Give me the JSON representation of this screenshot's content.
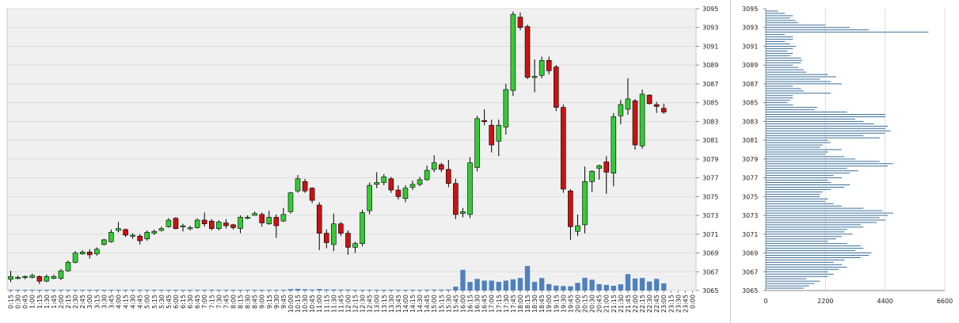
{
  "chart_data": [
    {
      "type": "candlestick",
      "title": "",
      "xlabel": "",
      "ylabel": "",
      "ylim": [
        3065,
        3095
      ],
      "grid": true,
      "y_ticks": [
        "3065",
        "3067",
        "3069",
        "3071",
        "3073",
        "3075",
        "3077",
        "3079",
        "3081",
        "3083",
        "3085",
        "3087",
        "3089",
        "3091",
        "3093",
        "3095"
      ],
      "x_ticks": [
        "0:15",
        "0:30",
        "0:45",
        "1:00",
        "1:15",
        "1:30",
        "1:45",
        "2:00",
        "2:15",
        "2:30",
        "2:45",
        "3:00",
        "3:15",
        "3:30",
        "3:45",
        "4:00",
        "4:15",
        "4:30",
        "4:45",
        "5:00",
        "5:15",
        "5:30",
        "5:45",
        "6:00",
        "6:15",
        "6:30",
        "6:45",
        "7:00",
        "7:15",
        "7:30",
        "7:45",
        "8:00",
        "8:15",
        "8:30",
        "8:45",
        "9:00",
        "9:15",
        "9:30",
        "9:45",
        "10:00",
        "10:15",
        "10:30",
        "10:45",
        "11:00",
        "11:15",
        "11:30",
        "11:45",
        "12:00",
        "12:15",
        "12:30",
        "12:45",
        "13:00",
        "13:15",
        "13:30",
        "13:45",
        "14:00",
        "14:15",
        "14:30",
        "14:45",
        "15:00",
        "15:15",
        "15:30",
        "15:45",
        "16:00",
        "16:15",
        "16:30",
        "16:45",
        "17:00",
        "17:15",
        "17:30",
        "17:45",
        "18:00",
        "18:15",
        "18:30",
        "18:45",
        "19:00",
        "19:15",
        "19:30",
        "19:45",
        "20:00",
        "20:15",
        "20:30",
        "20:45",
        "21:00",
        "21:15",
        "21:30",
        "21:45",
        "22:00",
        "22:15",
        "22:30",
        "22:45",
        "23:00",
        "23:15",
        "23:30",
        "23:45",
        "0:00"
      ],
      "colors": {
        "up": "#33cc33",
        "down": "#cc1111",
        "volume": "#4f81bd",
        "grid": "#dcdcdc",
        "plot_bg": "#f0f0f0"
      },
      "candles": [
        {
          "t": "0:15",
          "o": 3066.2,
          "h": 3067.1,
          "l": 3065.9,
          "c": 3066.5
        },
        {
          "t": "0:30",
          "o": 3066.4,
          "h": 3066.6,
          "l": 3066.2,
          "c": 3066.4
        },
        {
          "t": "0:45",
          "o": 3066.4,
          "h": 3066.6,
          "l": 3066.2,
          "c": 3066.5
        },
        {
          "t": "1:00",
          "o": 3066.4,
          "h": 3066.8,
          "l": 3066.3,
          "c": 3066.6
        },
        {
          "t": "1:15",
          "o": 3066.5,
          "h": 3066.6,
          "l": 3065.7,
          "c": 3066.0
        },
        {
          "t": "1:30",
          "o": 3066.0,
          "h": 3066.7,
          "l": 3065.9,
          "c": 3066.5
        },
        {
          "t": "1:45",
          "o": 3066.3,
          "h": 3066.7,
          "l": 3066.2,
          "c": 3066.5
        },
        {
          "t": "2:00",
          "o": 3066.3,
          "h": 3067.3,
          "l": 3066.1,
          "c": 3067.1
        },
        {
          "t": "2:15",
          "o": 3067.1,
          "h": 3068.2,
          "l": 3067.0,
          "c": 3068.0
        },
        {
          "t": "2:30",
          "o": 3068.0,
          "h": 3069.2,
          "l": 3067.9,
          "c": 3069.0
        },
        {
          "t": "2:45",
          "o": 3068.9,
          "h": 3069.3,
          "l": 3068.8,
          "c": 3069.1
        },
        {
          "t": "3:00",
          "o": 3069.1,
          "h": 3069.4,
          "l": 3068.4,
          "c": 3068.8
        },
        {
          "t": "3:15",
          "o": 3068.9,
          "h": 3069.6,
          "l": 3068.7,
          "c": 3069.4
        },
        {
          "t": "3:30",
          "o": 3069.9,
          "h": 3070.5,
          "l": 3069.8,
          "c": 3070.4
        },
        {
          "t": "3:45",
          "o": 3070.2,
          "h": 3071.5,
          "l": 3070.1,
          "c": 3071.2
        },
        {
          "t": "4:00",
          "o": 3071.4,
          "h": 3072.3,
          "l": 3071.2,
          "c": 3071.6
        },
        {
          "t": "4:15",
          "o": 3071.5,
          "h": 3071.6,
          "l": 3070.7,
          "c": 3070.9
        },
        {
          "t": "4:30",
          "o": 3070.8,
          "h": 3071.1,
          "l": 3070.5,
          "c": 3070.9
        },
        {
          "t": "4:45",
          "o": 3070.8,
          "h": 3071.0,
          "l": 3069.9,
          "c": 3070.3
        },
        {
          "t": "5:00",
          "o": 3070.5,
          "h": 3071.4,
          "l": 3070.3,
          "c": 3071.2
        },
        {
          "t": "5:15",
          "o": 3071.1,
          "h": 3071.5,
          "l": 3070.9,
          "c": 3071.3
        },
        {
          "t": "5:30",
          "o": 3071.4,
          "h": 3071.8,
          "l": 3071.3,
          "c": 3071.6
        },
        {
          "t": "5:45",
          "o": 3071.8,
          "h": 3072.7,
          "l": 3071.7,
          "c": 3072.5
        },
        {
          "t": "6:00",
          "o": 3072.7,
          "h": 3072.8,
          "l": 3071.5,
          "c": 3071.6
        },
        {
          "t": "6:15",
          "o": 3071.8,
          "h": 3072.1,
          "l": 3071.3,
          "c": 3071.9
        },
        {
          "t": "6:30",
          "o": 3071.7,
          "h": 3071.9,
          "l": 3071.4,
          "c": 3071.7
        },
        {
          "t": "6:45",
          "o": 3071.7,
          "h": 3072.7,
          "l": 3071.6,
          "c": 3072.5
        },
        {
          "t": "7:00",
          "o": 3072.5,
          "h": 3073.3,
          "l": 3071.8,
          "c": 3072.1
        },
        {
          "t": "7:15",
          "o": 3072.4,
          "h": 3072.6,
          "l": 3071.4,
          "c": 3071.6
        },
        {
          "t": "7:30",
          "o": 3071.6,
          "h": 3072.5,
          "l": 3071.4,
          "c": 3072.3
        },
        {
          "t": "7:45",
          "o": 3072.2,
          "h": 3072.6,
          "l": 3071.6,
          "c": 3071.9
        },
        {
          "t": "8:00",
          "o": 3072.0,
          "h": 3072.1,
          "l": 3071.5,
          "c": 3071.7
        },
        {
          "t": "8:15",
          "o": 3071.6,
          "h": 3073.0,
          "l": 3071.1,
          "c": 3072.8
        },
        {
          "t": "8:30",
          "o": 3072.8,
          "h": 3073.0,
          "l": 3072.6,
          "c": 3072.8
        },
        {
          "t": "8:45",
          "o": 3073.0,
          "h": 3073.4,
          "l": 3073.0,
          "c": 3073.2
        },
        {
          "t": "9:00",
          "o": 3073.1,
          "h": 3073.3,
          "l": 3071.8,
          "c": 3072.2
        },
        {
          "t": "9:15",
          "o": 3072.1,
          "h": 3073.5,
          "l": 3072.0,
          "c": 3072.8
        },
        {
          "t": "9:30",
          "o": 3072.8,
          "h": 3073.1,
          "l": 3070.6,
          "c": 3071.9
        },
        {
          "t": "9:45",
          "o": 3072.4,
          "h": 3073.8,
          "l": 3072.3,
          "c": 3073.1
        },
        {
          "t": "10:00",
          "o": 3073.4,
          "h": 3075.5,
          "l": 3073.2,
          "c": 3075.4
        },
        {
          "t": "10:15",
          "o": 3075.6,
          "h": 3077.3,
          "l": 3075.4,
          "c": 3076.9
        },
        {
          "t": "10:30",
          "o": 3076.6,
          "h": 3076.9,
          "l": 3075.4,
          "c": 3075.6
        },
        {
          "t": "10:45",
          "o": 3075.9,
          "h": 3076.0,
          "l": 3074.3,
          "c": 3074.6
        },
        {
          "t": "11:00",
          "o": 3074.1,
          "h": 3074.4,
          "l": 3069.3,
          "c": 3071.1
        },
        {
          "t": "11:15",
          "o": 3071.1,
          "h": 3071.5,
          "l": 3069.5,
          "c": 3070.1
        },
        {
          "t": "11:30",
          "o": 3069.9,
          "h": 3073.2,
          "l": 3069.2,
          "c": 3072.1
        },
        {
          "t": "11:45",
          "o": 3072.1,
          "h": 3072.3,
          "l": 3070.8,
          "c": 3071.1
        },
        {
          "t": "12:00",
          "o": 3071.1,
          "h": 3071.4,
          "l": 3068.8,
          "c": 3069.6
        },
        {
          "t": "12:15",
          "o": 3069.6,
          "h": 3070.2,
          "l": 3069.0,
          "c": 3070.0
        },
        {
          "t": "12:30",
          "o": 3070.0,
          "h": 3073.6,
          "l": 3069.7,
          "c": 3073.3
        },
        {
          "t": "12:45",
          "o": 3073.5,
          "h": 3076.5,
          "l": 3073.1,
          "c": 3076.2
        },
        {
          "t": "13:00",
          "o": 3076.3,
          "h": 3077.6,
          "l": 3075.9,
          "c": 3076.5
        },
        {
          "t": "13:15",
          "o": 3076.5,
          "h": 3077.4,
          "l": 3076.2,
          "c": 3077.1
        },
        {
          "t": "13:30",
          "o": 3076.9,
          "h": 3077.1,
          "l": 3075.4,
          "c": 3075.7
        },
        {
          "t": "13:45",
          "o": 3075.7,
          "h": 3076.2,
          "l": 3074.7,
          "c": 3075.0
        },
        {
          "t": "14:00",
          "o": 3074.8,
          "h": 3076.2,
          "l": 3074.4,
          "c": 3075.9
        },
        {
          "t": "14:15",
          "o": 3076.0,
          "h": 3076.7,
          "l": 3075.7,
          "c": 3076.3
        },
        {
          "t": "14:30",
          "o": 3076.3,
          "h": 3077.1,
          "l": 3076.1,
          "c": 3076.8
        },
        {
          "t": "14:45",
          "o": 3076.8,
          "h": 3078.3,
          "l": 3076.7,
          "c": 3077.8
        },
        {
          "t": "15:00",
          "o": 3077.9,
          "h": 3079.4,
          "l": 3077.6,
          "c": 3078.6
        },
        {
          "t": "15:15",
          "o": 3078.4,
          "h": 3078.6,
          "l": 3077.6,
          "c": 3077.9
        },
        {
          "t": "15:30",
          "o": 3077.9,
          "h": 3078.9,
          "l": 3076.0,
          "c": 3076.4
        },
        {
          "t": "15:45",
          "o": 3076.4,
          "h": 3076.9,
          "l": 3072.6,
          "c": 3073.1
        },
        {
          "t": "16:00",
          "o": 3073.2,
          "h": 3073.8,
          "l": 3072.8,
          "c": 3073.4
        },
        {
          "t": "16:15",
          "o": 3073.1,
          "h": 3079.2,
          "l": 3072.7,
          "c": 3078.6
        },
        {
          "t": "16:30",
          "o": 3078.1,
          "h": 3083.6,
          "l": 3077.7,
          "c": 3083.3
        },
        {
          "t": "16:45",
          "o": 3083.1,
          "h": 3084.3,
          "l": 3082.6,
          "c": 3083.0
        },
        {
          "t": "17:00",
          "o": 3082.6,
          "h": 3083.2,
          "l": 3079.7,
          "c": 3080.5
        },
        {
          "t": "17:15",
          "o": 3080.9,
          "h": 3083.2,
          "l": 3079.3,
          "c": 3082.6
        },
        {
          "t": "17:30",
          "o": 3082.4,
          "h": 3087.0,
          "l": 3081.6,
          "c": 3086.4
        },
        {
          "t": "17:45",
          "o": 3086.3,
          "h": 3094.7,
          "l": 3085.7,
          "c": 3094.4
        },
        {
          "t": "18:00",
          "o": 3094.1,
          "h": 3094.6,
          "l": 3092.7,
          "c": 3093.0
        },
        {
          "t": "18:15",
          "o": 3093.1,
          "h": 3093.3,
          "l": 3087.5,
          "c": 3087.7
        },
        {
          "t": "18:30",
          "o": 3087.7,
          "h": 3089.6,
          "l": 3086.1,
          "c": 3087.8
        },
        {
          "t": "18:45",
          "o": 3087.9,
          "h": 3089.9,
          "l": 3087.6,
          "c": 3089.5
        },
        {
          "t": "19:00",
          "o": 3089.5,
          "h": 3089.9,
          "l": 3088.0,
          "c": 3088.4
        },
        {
          "t": "19:15",
          "o": 3088.8,
          "h": 3089.0,
          "l": 3084.1,
          "c": 3084.5
        },
        {
          "t": "19:30",
          "o": 3084.5,
          "h": 3084.8,
          "l": 3075.4,
          "c": 3075.8
        },
        {
          "t": "19:45",
          "o": 3075.6,
          "h": 3075.8,
          "l": 3070.4,
          "c": 3071.8
        },
        {
          "t": "20:00",
          "o": 3071.3,
          "h": 3073.1,
          "l": 3070.8,
          "c": 3071.9
        },
        {
          "t": "20:15",
          "o": 3072.0,
          "h": 3078.2,
          "l": 3071.1,
          "c": 3076.6
        },
        {
          "t": "20:30",
          "o": 3076.6,
          "h": 3077.8,
          "l": 3075.5,
          "c": 3077.7
        },
        {
          "t": "20:45",
          "o": 3078.0,
          "h": 3078.4,
          "l": 3076.8,
          "c": 3078.3
        },
        {
          "t": "21:00",
          "o": 3078.7,
          "h": 3079.3,
          "l": 3075.3,
          "c": 3077.6
        },
        {
          "t": "21:15",
          "o": 3077.5,
          "h": 3083.9,
          "l": 3076.1,
          "c": 3083.5
        },
        {
          "t": "21:30",
          "o": 3083.6,
          "h": 3085.3,
          "l": 3082.7,
          "c": 3084.8
        },
        {
          "t": "21:45",
          "o": 3084.3,
          "h": 3087.6,
          "l": 3083.7,
          "c": 3085.4
        },
        {
          "t": "22:00",
          "o": 3085.2,
          "h": 3085.4,
          "l": 3080.0,
          "c": 3080.5
        },
        {
          "t": "22:15",
          "o": 3080.4,
          "h": 3086.4,
          "l": 3080.1,
          "c": 3085.9
        },
        {
          "t": "22:30",
          "o": 3085.8,
          "h": 3085.9,
          "l": 3084.8,
          "c": 3084.9
        },
        {
          "t": "22:45",
          "o": 3084.8,
          "h": 3085.1,
          "l": 3083.9,
          "c": 3084.6
        },
        {
          "t": "23:00",
          "o": 3084.4,
          "h": 3084.9,
          "l": 3083.8,
          "c": 3084.0
        }
      ],
      "volume": [
        50,
        30,
        20,
        20,
        30,
        20,
        20,
        60,
        40,
        40,
        30,
        40,
        40,
        40,
        40,
        40,
        30,
        30,
        30,
        30,
        30,
        30,
        30,
        30,
        30,
        30,
        30,
        30,
        30,
        30,
        30,
        30,
        30,
        30,
        30,
        50,
        60,
        60,
        80,
        170,
        190,
        150,
        120,
        180,
        120,
        120,
        110,
        110,
        60,
        70,
        60,
        60,
        70,
        60,
        60,
        60,
        70,
        60,
        100,
        110,
        110,
        110,
        450,
        2400,
        1000,
        1350,
        1150,
        1150,
        1000,
        1150,
        1300,
        1450,
        2850,
        1000,
        1450,
        740,
        570,
        520,
        490,
        890,
        1480,
        1250,
        740,
        650,
        550,
        720,
        1900,
        1400,
        1450,
        1050,
        1350,
        830
      ]
    },
    {
      "type": "bar",
      "orientation": "horizontal",
      "title": "",
      "xlabel": "",
      "ylabel": "",
      "xlim": [
        0,
        6600
      ],
      "x_ticks": [
        "0",
        "2200",
        "4400",
        "6600"
      ],
      "y_ticks": [
        "3065",
        "3067",
        "3069",
        "3071",
        "3073",
        "3075",
        "3077",
        "3079",
        "3081",
        "3083",
        "3085",
        "3087",
        "3089",
        "3091",
        "3093",
        "3095"
      ],
      "price_step": 0.25,
      "price_start": 3094.75,
      "values": [
        450,
        700,
        1000,
        900,
        1100,
        1200,
        2200,
        3100,
        3800,
        6000,
        700,
        1000,
        1000,
        700,
        900,
        1100,
        1000,
        800,
        1000,
        900,
        1300,
        1350,
        1300,
        1000,
        1200,
        1400,
        1500,
        2300,
        2600,
        2000,
        2400,
        2800,
        1000,
        1300,
        1400,
        2400,
        1000,
        1000,
        900,
        800,
        1000,
        1900,
        1800,
        3000,
        4400,
        4400,
        3300,
        3600,
        4000,
        4500,
        4400,
        4600,
        4400,
        3600,
        4200,
        2300,
        2400,
        2100,
        2000,
        2800,
        2300,
        2200,
        2900,
        3300,
        4200,
        4700,
        4500,
        3000,
        3400,
        3100,
        2500,
        2800,
        2300,
        2400,
        3100,
        2900,
        2400,
        2100,
        2000,
        2000,
        2300,
        2200,
        2500,
        2800,
        3600,
        4300,
        4700,
        4500,
        4200,
        4400,
        4100,
        3500,
        3600,
        3000,
        2900,
        3200,
        2800,
        2600,
        2300,
        3000,
        3500,
        3600,
        3300,
        3900,
        3800,
        3500,
        2900,
        2500,
        2800,
        3000,
        2700,
        2300,
        2500,
        2300,
        1500,
        2000,
        1800,
        1600,
        1400,
        1200,
        1000,
        1100,
        900,
        800,
        700,
        700,
        600,
        450,
        500,
        350,
        300,
        250,
        450,
        350,
        300,
        200,
        150,
        120,
        100,
        80,
        60,
        40,
        30,
        20,
        20,
        15,
        10,
        10,
        10,
        10,
        10,
        8,
        6,
        5
      ]
    }
  ]
}
